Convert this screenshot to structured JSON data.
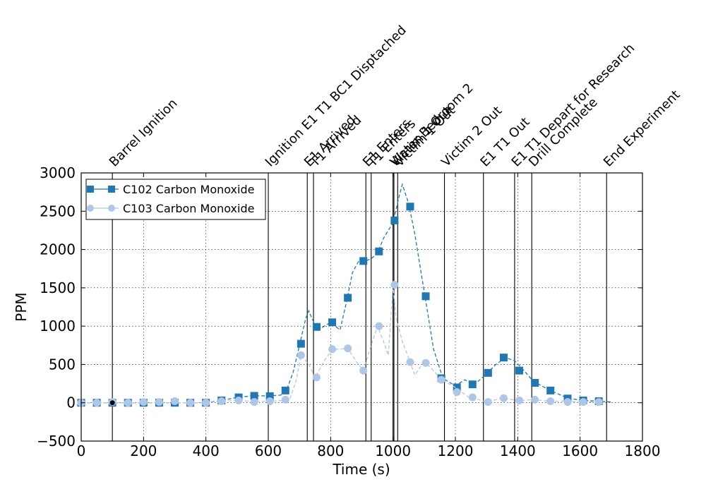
{
  "chart_data": {
    "type": "line",
    "xlabel": "Time (s)",
    "ylabel": "PPM",
    "xlim": [
      0,
      1800
    ],
    "ylim": [
      -500,
      3000
    ],
    "x_ticks": [
      0,
      200,
      400,
      600,
      800,
      1000,
      1200,
      1400,
      1600,
      1800
    ],
    "y_ticks": [
      -500,
      0,
      500,
      1000,
      1500,
      2000,
      2500,
      3000
    ],
    "grid": true,
    "legend_position": "upper-left",
    "series": [
      {
        "name": "C102 Carbon Monoxide",
        "color": "#1f77b4",
        "marker": "square",
        "line_style": "dashed",
        "curve": [
          [
            0,
            0
          ],
          [
            100,
            0
          ],
          [
            200,
            0
          ],
          [
            300,
            0
          ],
          [
            400,
            0
          ],
          [
            450,
            30
          ],
          [
            500,
            70
          ],
          [
            550,
            90
          ],
          [
            600,
            90
          ],
          [
            640,
            100
          ],
          [
            660,
            180
          ],
          [
            680,
            400
          ],
          [
            700,
            750
          ],
          [
            720,
            1100
          ],
          [
            730,
            1200
          ],
          [
            740,
            1100
          ],
          [
            760,
            950
          ],
          [
            780,
            1000
          ],
          [
            800,
            1050
          ],
          [
            830,
            950
          ],
          [
            850,
            1300
          ],
          [
            870,
            1700
          ],
          [
            890,
            1850
          ],
          [
            910,
            1850
          ],
          [
            930,
            1880
          ],
          [
            950,
            1950
          ],
          [
            970,
            2150
          ],
          [
            1000,
            2350
          ],
          [
            1020,
            2700
          ],
          [
            1030,
            2850
          ],
          [
            1050,
            2600
          ],
          [
            1070,
            2200
          ],
          [
            1090,
            1700
          ],
          [
            1110,
            1200
          ],
          [
            1130,
            700
          ],
          [
            1160,
            320
          ],
          [
            1200,
            220
          ],
          [
            1230,
            300
          ],
          [
            1260,
            230
          ],
          [
            1300,
            380
          ],
          [
            1330,
            500
          ],
          [
            1360,
            590
          ],
          [
            1390,
            550
          ],
          [
            1420,
            420
          ],
          [
            1450,
            280
          ],
          [
            1500,
            170
          ],
          [
            1560,
            60
          ],
          [
            1610,
            30
          ],
          [
            1660,
            20
          ],
          [
            1700,
            10
          ]
        ],
        "marker_points": [
          [
            0,
            0
          ],
          [
            50,
            0
          ],
          [
            100,
            0
          ],
          [
            150,
            0
          ],
          [
            200,
            0
          ],
          [
            250,
            0
          ],
          [
            300,
            0
          ],
          [
            350,
            0
          ],
          [
            400,
            0
          ],
          [
            450,
            30
          ],
          [
            505,
            70
          ],
          [
            555,
            90
          ],
          [
            605,
            85
          ],
          [
            655,
            160
          ],
          [
            705,
            770
          ],
          [
            755,
            990
          ],
          [
            805,
            1050
          ],
          [
            855,
            1370
          ],
          [
            905,
            1850
          ],
          [
            955,
            1975
          ],
          [
            1005,
            2380
          ],
          [
            1055,
            2560
          ],
          [
            1105,
            1390
          ],
          [
            1155,
            320
          ],
          [
            1205,
            200
          ],
          [
            1255,
            240
          ],
          [
            1305,
            390
          ],
          [
            1355,
            590
          ],
          [
            1405,
            420
          ],
          [
            1455,
            260
          ],
          [
            1505,
            160
          ],
          [
            1560,
            55
          ],
          [
            1610,
            30
          ],
          [
            1660,
            20
          ]
        ]
      },
      {
        "name": "C103 Carbon Monoxide",
        "color": "#aec7e8",
        "marker": "circle",
        "line_style": "dashed",
        "curve": [
          [
            0,
            0
          ],
          [
            100,
            0
          ],
          [
            200,
            0
          ],
          [
            300,
            0
          ],
          [
            400,
            0
          ],
          [
            450,
            20
          ],
          [
            500,
            30
          ],
          [
            550,
            20
          ],
          [
            600,
            20
          ],
          [
            650,
            30
          ],
          [
            670,
            60
          ],
          [
            690,
            300
          ],
          [
            705,
            620
          ],
          [
            730,
            500
          ],
          [
            750,
            330
          ],
          [
            780,
            550
          ],
          [
            805,
            700
          ],
          [
            830,
            700
          ],
          [
            855,
            710
          ],
          [
            880,
            550
          ],
          [
            905,
            420
          ],
          [
            930,
            750
          ],
          [
            950,
            1000
          ],
          [
            970,
            800
          ],
          [
            985,
            620
          ],
          [
            1000,
            1530
          ],
          [
            1010,
            1100
          ],
          [
            1030,
            800
          ],
          [
            1055,
            530
          ],
          [
            1070,
            360
          ],
          [
            1090,
            480
          ],
          [
            1105,
            520
          ],
          [
            1130,
            420
          ],
          [
            1155,
            300
          ],
          [
            1200,
            200
          ],
          [
            1240,
            80
          ],
          [
            1300,
            10
          ],
          [
            1350,
            60
          ],
          [
            1400,
            30
          ],
          [
            1450,
            40
          ],
          [
            1500,
            20
          ],
          [
            1550,
            20
          ],
          [
            1610,
            10
          ],
          [
            1660,
            10
          ]
        ],
        "marker_points": [
          [
            0,
            0
          ],
          [
            50,
            0
          ],
          [
            100,
            10
          ],
          [
            150,
            0
          ],
          [
            200,
            10
          ],
          [
            250,
            10
          ],
          [
            300,
            20
          ],
          [
            350,
            0
          ],
          [
            400,
            0
          ],
          [
            450,
            20
          ],
          [
            505,
            30
          ],
          [
            555,
            10
          ],
          [
            605,
            20
          ],
          [
            655,
            40
          ],
          [
            705,
            620
          ],
          [
            755,
            330
          ],
          [
            805,
            700
          ],
          [
            855,
            710
          ],
          [
            905,
            420
          ],
          [
            955,
            1000
          ],
          [
            1005,
            1540
          ],
          [
            1055,
            530
          ],
          [
            1105,
            520
          ],
          [
            1155,
            300
          ],
          [
            1205,
            140
          ],
          [
            1255,
            70
          ],
          [
            1305,
            10
          ],
          [
            1355,
            60
          ],
          [
            1405,
            30
          ],
          [
            1455,
            40
          ],
          [
            1505,
            20
          ],
          [
            1560,
            10
          ],
          [
            1610,
            10
          ],
          [
            1660,
            10
          ]
        ]
      }
    ],
    "events": [
      {
        "t": 100,
        "label": "Barrel Ignition"
      },
      {
        "t": 600,
        "label": "Ignition E1 T1 BC1 Disptached"
      },
      {
        "t": 725,
        "label": "E1 Arrived"
      },
      {
        "t": 745,
        "label": "T1 Arrived"
      },
      {
        "t": 913,
        "label": "E1 Enters"
      },
      {
        "t": 930,
        "label": "T1 Enters"
      },
      {
        "t": 1000,
        "label": "Water Bedroom 2"
      },
      {
        "t": 1003,
        "label": "Victim 1 Out"
      },
      {
        "t": 1015,
        "label": "Victim 1 Out"
      },
      {
        "t": 1165,
        "label": "Victim 2 Out"
      },
      {
        "t": 1290,
        "label": "E1 T1 Out"
      },
      {
        "t": 1390,
        "label": "E1 T1 Depart for Research"
      },
      {
        "t": 1445,
        "label": "Drill Complete"
      },
      {
        "t": 1685,
        "label": "End Experiment"
      }
    ]
  }
}
